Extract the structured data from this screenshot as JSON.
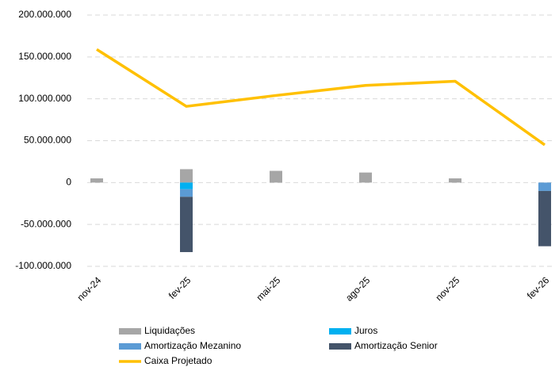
{
  "chart_data": {
    "type": "bar",
    "stacked": true,
    "categories": [
      "nov-24",
      "fev-25",
      "mai-25",
      "ago-25",
      "nov-25",
      "fev-26"
    ],
    "series": [
      {
        "name": "Liquidações",
        "color": "#a6a6a6",
        "values": [
          5000000,
          16000000,
          14000000,
          12000000,
          5000000,
          0
        ]
      },
      {
        "name": "Juros",
        "color": "#00b0f0",
        "values": [
          0,
          -8000000,
          0,
          0,
          0,
          0
        ]
      },
      {
        "name": "Amortização Mezanino",
        "color": "#5b9bd5",
        "values": [
          0,
          -9000000,
          0,
          0,
          0,
          -10000000
        ]
      },
      {
        "name": "Amortização Senior",
        "color": "#44546a",
        "values": [
          0,
          -66000000,
          0,
          0,
          0,
          -66000000
        ]
      },
      {
        "name": "Caixa Projetado",
        "color": "#ffc000",
        "type": "line",
        "values": [
          159000000,
          91000000,
          104000000,
          116000000,
          121000000,
          45000000
        ]
      }
    ],
    "ylim": [
      -100000000,
      200000000
    ],
    "yticks": [
      {
        "value": -100000000,
        "label": "-100.000.000"
      },
      {
        "value": -50000000,
        "label": "-50.000.000"
      },
      0,
      {
        "value": 50000000,
        "label": "50.000.000"
      },
      {
        "value": 100000000,
        "label": "100.000.000"
      },
      {
        "value": 150000000,
        "label": "150.000.000"
      },
      {
        "value": 200000000,
        "label": "200.000.000"
      }
    ],
    "grid": true,
    "legend": "bottom"
  }
}
